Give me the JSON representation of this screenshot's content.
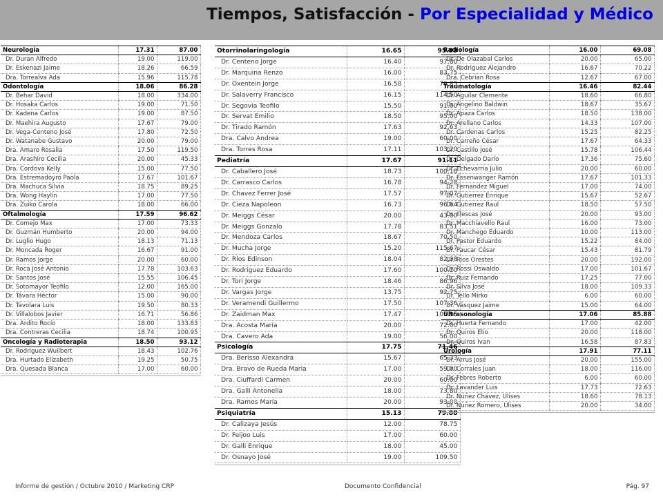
{
  "header": {
    "title_main": "Tiempos, Satisfacción - ",
    "title_highlight": "Por Especialidad y Médico"
  },
  "columns": [
    {
      "rows": [
        {
          "type": "specialty",
          "name": "Neurología",
          "time": "17.31",
          "score": "87.00"
        },
        {
          "type": "doctor",
          "name": "Dr. Duran Alfredo",
          "time": "19.00",
          "score": "119.00"
        },
        {
          "type": "doctor",
          "name": "Dr. Eskenazi Jaime",
          "time": "18.26",
          "score": "66.59"
        },
        {
          "type": "doctor",
          "name": "Dra. Torrealva Ada",
          "time": "15.96",
          "score": "115.78"
        },
        {
          "type": "specialty",
          "name": "Odontología",
          "time": "18.06",
          "score": "86.28"
        },
        {
          "type": "doctor",
          "name": "Dr. Behar David",
          "time": "18.00",
          "score": "334.00"
        },
        {
          "type": "doctor",
          "name": "Dr. Hosaka Carlos",
          "time": "19.00",
          "score": "71.50"
        },
        {
          "type": "doctor",
          "name": "Dr. Kadena Carlos",
          "time": "19.00",
          "score": "87.50"
        },
        {
          "type": "doctor",
          "name": "Dr. Maehira Augusto",
          "time": "17.67",
          "score": "79.00"
        },
        {
          "type": "doctor",
          "name": "Dr. Vega-Centeno José",
          "time": "17.80",
          "score": "72.50"
        },
        {
          "type": "doctor",
          "name": "Dr. Watanabe Gustavo",
          "time": "20.00",
          "score": "79.00"
        },
        {
          "type": "doctor",
          "name": "Dra. Amaro Rosalia",
          "time": "17.50",
          "score": "119.50"
        },
        {
          "type": "doctor",
          "name": "Dra. Arashiro Cecilia",
          "time": "20.00",
          "score": "45.33"
        },
        {
          "type": "doctor",
          "name": "Dra. Cordova Kelly",
          "time": "15.00",
          "score": "77.50"
        },
        {
          "type": "doctor",
          "name": "Dra. Estremadoyro Paola",
          "time": "17.67",
          "score": "101.67"
        },
        {
          "type": "doctor",
          "name": "Dra. Machuca Silvia",
          "time": "18.75",
          "score": "89.25"
        },
        {
          "type": "doctor",
          "name": "Dra. Wong Haylin",
          "time": "17.00",
          "score": "77.50"
        },
        {
          "type": "doctor",
          "name": "Dra. Zuiko Carola",
          "time": "18.00",
          "score": "66.00"
        },
        {
          "type": "specialty",
          "name": "Oftalmología",
          "time": "17.59",
          "score": "96.62"
        },
        {
          "type": "doctor",
          "name": "Dr. Comejo Max",
          "time": "17.00",
          "score": "73.33"
        },
        {
          "type": "doctor",
          "name": "Dr. Guzmán Humberto",
          "time": "20.00",
          "score": "94.00"
        },
        {
          "type": "doctor",
          "name": "Dr. Luglio Hugo",
          "time": "18.13",
          "score": "71.13"
        },
        {
          "type": "doctor",
          "name": "Dr. Moncada Roger",
          "time": "16.67",
          "score": "91.00"
        },
        {
          "type": "doctor",
          "name": "Dr. Ramos Jorge",
          "time": "20.00",
          "score": "60.00"
        },
        {
          "type": "doctor",
          "name": "Dr. Roca José Antonio",
          "time": "17.78",
          "score": "103.63"
        },
        {
          "type": "doctor",
          "name": "Dr. Santos José",
          "time": "15.55",
          "score": "106.45"
        },
        {
          "type": "doctor",
          "name": "Dr. Sotomayor Teofilo",
          "time": "12.00",
          "score": "165.00"
        },
        {
          "type": "doctor",
          "name": "Dr. Távara Héctor",
          "time": "15.00",
          "score": "90.00"
        },
        {
          "type": "doctor",
          "name": "Dr. Tavolara Luis",
          "time": "19.50",
          "score": "80.33"
        },
        {
          "type": "doctor",
          "name": "Dr. Villalobos Javier",
          "time": "16.71",
          "score": "56.86"
        },
        {
          "type": "doctor",
          "name": "Dra. Ardito Rocío",
          "time": "18.00",
          "score": "133.83"
        },
        {
          "type": "doctor",
          "name": "Dra. Contreras Cecilia",
          "time": "18.74",
          "score": "100.95"
        },
        {
          "type": "specialty",
          "name": "Oncología y Radioterapia",
          "time": "18.50",
          "score": "93.12"
        },
        {
          "type": "doctor",
          "name": "Dr. Rodriguez Wuilbert",
          "time": "18.43",
          "score": "102.76"
        },
        {
          "type": "doctor",
          "name": "Dra. Hurtado Elizabeth",
          "time": "19.25",
          "score": "50.75"
        },
        {
          "type": "doctor",
          "name": "Dra. Quesada Blanca",
          "time": "17.00",
          "score": "60.00"
        }
      ]
    },
    {
      "rows": [
        {
          "type": "specialty",
          "name": "Otorrinolaringología",
          "time": "16.65",
          "score": "95.93"
        },
        {
          "type": "doctor",
          "name": "Dr. Centeno Jorge",
          "time": "16.40",
          "score": "97.80"
        },
        {
          "type": "doctor",
          "name": "Dr. Marquina Renzo",
          "time": "16.00",
          "score": "83.75"
        },
        {
          "type": "doctor",
          "name": "Dr. Oxentein Jorge",
          "time": "16.58",
          "score": "76.85"
        },
        {
          "type": "doctor",
          "name": "Dr. Salaverry Francisco",
          "time": "16.15",
          "score": "114.50"
        },
        {
          "type": "doctor",
          "name": "Dr. Segovia Teofilo",
          "time": "15.50",
          "score": "91.00"
        },
        {
          "type": "doctor",
          "name": "Dr. Servat Emilio",
          "time": "18.50",
          "score": "95.00"
        },
        {
          "type": "doctor",
          "name": "Dr. Tirado Ramón",
          "time": "17.63",
          "score": "92.63"
        },
        {
          "type": "doctor",
          "name": "Dra. Calvo Andrea",
          "time": "19.00",
          "score": "60.00"
        },
        {
          "type": "doctor",
          "name": "Dra. Torres Rosa",
          "time": "17.11",
          "score": "103.20"
        },
        {
          "type": "specialty",
          "name": "Pediatría",
          "time": "17.67",
          "score": "91.11"
        },
        {
          "type": "doctor",
          "name": "Dr. Caballero José",
          "time": "18.73",
          "score": "100.18"
        },
        {
          "type": "doctor",
          "name": "Dr. Carrasco Carlos",
          "time": "16.78",
          "score": "94.28"
        },
        {
          "type": "doctor",
          "name": "Dr. Chavez Ferrer José",
          "time": "17.57",
          "score": "97.07"
        },
        {
          "type": "doctor",
          "name": "Dr. Cieza Napoleon",
          "time": "16.73",
          "score": "96.64"
        },
        {
          "type": "doctor",
          "name": "Dr. Meiggs César",
          "time": "20.00",
          "score": "43.00"
        },
        {
          "type": "doctor",
          "name": "Dr. Meiggs Gonzalo",
          "time": "17.78",
          "score": "83.51"
        },
        {
          "type": "doctor",
          "name": "Dr. Mendoza Carlos",
          "time": "18.67",
          "score": "70.50"
        },
        {
          "type": "doctor",
          "name": "Dr. Mucha Jorge",
          "time": "15.20",
          "score": "115.67"
        },
        {
          "type": "doctor",
          "name": "Dr. Rios Edinson",
          "time": "18.04",
          "score": "82.38"
        },
        {
          "type": "doctor",
          "name": "Dr. Rodriguez Eduardo",
          "time": "17.60",
          "score": "100.20"
        },
        {
          "type": "doctor",
          "name": "Dr. Tori Jorge",
          "time": "18.46",
          "score": "86.96"
        },
        {
          "type": "doctor",
          "name": "Dr. Vargas Jorge",
          "time": "13.75",
          "score": "92.75"
        },
        {
          "type": "doctor",
          "name": "Dr. Veramendi Guillermo",
          "time": "17.50",
          "score": "107.36"
        },
        {
          "type": "doctor",
          "name": "Dr. Zaidman Max",
          "time": "17.47",
          "score": "105.95"
        },
        {
          "type": "doctor",
          "name": "Dra. Acosta María",
          "time": "20.00",
          "score": "72.00"
        },
        {
          "type": "doctor",
          "name": "Dra. Cavero Ada",
          "time": "19.00",
          "score": "56.00"
        },
        {
          "type": "specialty",
          "name": "Psicología",
          "time": "17.75",
          "score": "71.46"
        },
        {
          "type": "doctor",
          "name": "Dra. Berisso Alexandra",
          "time": "15.67",
          "score": "65.33"
        },
        {
          "type": "doctor",
          "name": "Dra. Bravo de Rueda María",
          "time": "17.00",
          "score": "59.00"
        },
        {
          "type": "doctor",
          "name": "Dra. Ciuffardi Carmen",
          "time": "20.00",
          "score": "60.00"
        },
        {
          "type": "doctor",
          "name": "Dra. Galli Antonella",
          "time": "18.00",
          "score": "73.80"
        },
        {
          "type": "doctor",
          "name": "Dra. Ramos María",
          "time": "20.00",
          "score": "93.00"
        },
        {
          "type": "specialty",
          "name": "Psiquiatría",
          "time": "15.13",
          "score": "79.88"
        },
        {
          "type": "doctor",
          "name": "Dr. Calizaya Jesús",
          "time": "12.00",
          "score": "78.75"
        },
        {
          "type": "doctor",
          "name": "Dr. Feijoo Luis",
          "time": "17.00",
          "score": "60.00"
        },
        {
          "type": "doctor",
          "name": "Dr. Galli Enrique",
          "time": "18.00",
          "score": "45.00"
        },
        {
          "type": "doctor",
          "name": "Dr. Osnayo José",
          "time": "19.00",
          "score": "109.50"
        }
      ]
    },
    {
      "rows": [
        {
          "type": "specialty",
          "name": "Radiología",
          "time": "16.00",
          "score": "69.08"
        },
        {
          "type": "doctor",
          "name": "Dr. De Olazabal Carlos",
          "time": "20.00",
          "score": "65.00"
        },
        {
          "type": "doctor",
          "name": "Dr. Rodriguez Alejandro",
          "time": "16.67",
          "score": "70.22"
        },
        {
          "type": "doctor",
          "name": "Dra. Cebrian Rosa",
          "time": "12.67",
          "score": "67.00"
        },
        {
          "type": "specialty",
          "name": "Traumatología",
          "time": "16.46",
          "score": "82.44"
        },
        {
          "type": "doctor",
          "name": "Dr. Aguilar Clemente",
          "time": "18.60",
          "score": "66.80"
        },
        {
          "type": "doctor",
          "name": "Dr. Angelino Baldwin",
          "time": "18.67",
          "score": "35.67"
        },
        {
          "type": "doctor",
          "name": "Dr. Apaza Carlos",
          "time": "18.50",
          "score": "138.00"
        },
        {
          "type": "doctor",
          "name": "Dr. Arellano Carlos",
          "time": "14.33",
          "score": "107.00"
        },
        {
          "type": "doctor",
          "name": "Dr. Cardenas Carlos",
          "time": "15.25",
          "score": "82.25"
        },
        {
          "type": "doctor",
          "name": "Dr. Carreño César",
          "time": "17.67",
          "score": "64.33"
        },
        {
          "type": "doctor",
          "name": "Dr. Castillo José",
          "time": "15.78",
          "score": "106.44"
        },
        {
          "type": "doctor",
          "name": "Dr. Delgado Darío",
          "time": "17.36",
          "score": "75.60"
        },
        {
          "type": "doctor",
          "name": "Dr. Echevarria Julio",
          "time": "20.00",
          "score": "60.00"
        },
        {
          "type": "doctor",
          "name": "Dr. Essenwanger Ramón",
          "time": "17.67",
          "score": "101.33"
        },
        {
          "type": "doctor",
          "name": "Dr. Fernandez Miguel",
          "time": "17.00",
          "score": "74.00"
        },
        {
          "type": "doctor",
          "name": "Dr. Gutierrez Enrique",
          "time": "15.67",
          "score": "52.67"
        },
        {
          "type": "doctor",
          "name": "Dr. Gutierrez Raul",
          "time": "18.50",
          "score": "57.50"
        },
        {
          "type": "doctor",
          "name": "Dr. Illescas José",
          "time": "20.00",
          "score": "93.00"
        },
        {
          "type": "doctor",
          "name": "Dr. Macchiavello Raul",
          "time": "16.00",
          "score": "73.00"
        },
        {
          "type": "doctor",
          "name": "Dr. Manchego Eduardo",
          "time": "10.00",
          "score": "113.00"
        },
        {
          "type": "doctor",
          "name": "Dr. Pastor Eduardo",
          "time": "15.22",
          "score": "84.00"
        },
        {
          "type": "doctor",
          "name": "Dr. Paucar César",
          "time": "15.43",
          "score": "81.79"
        },
        {
          "type": "doctor",
          "name": "Dr. Rios Orestes",
          "time": "20.00",
          "score": "192.00"
        },
        {
          "type": "doctor",
          "name": "Dr. Rossi Oswaldo",
          "time": "17.00",
          "score": "101.67"
        },
        {
          "type": "doctor",
          "name": "Dr. Ruiz Fernando",
          "time": "17.25",
          "score": "77.00"
        },
        {
          "type": "doctor",
          "name": "Dr. Silva José",
          "time": "18.00",
          "score": "109.33"
        },
        {
          "type": "doctor",
          "name": "Dr. Tello Mirko",
          "time": "6.00",
          "score": "60.00"
        },
        {
          "type": "doctor",
          "name": "Dr. Vásquez Jaime",
          "time": "15.00",
          "score": "64.00"
        },
        {
          "type": "specialty",
          "name": "Ultrasonología",
          "time": "17.06",
          "score": "85.88"
        },
        {
          "type": "doctor",
          "name": "Dr. Huerta Fernando",
          "time": "17.00",
          "score": "42.00"
        },
        {
          "type": "doctor",
          "name": "Dr. Quiros Elio",
          "time": "20.00",
          "score": "118.00"
        },
        {
          "type": "doctor",
          "name": "Dr. Quiros Ivan",
          "time": "16.58",
          "score": "87.83"
        },
        {
          "type": "specialty",
          "name": "Urología",
          "time": "17.91",
          "score": "77.11"
        },
        {
          "type": "doctor",
          "name": "Dr. Arrus José",
          "time": "20.00",
          "score": "155.00"
        },
        {
          "type": "doctor",
          "name": "Dr. Corrales Juan",
          "time": "18.00",
          "score": "116.00"
        },
        {
          "type": "doctor",
          "name": "Dr. Febres Roberto",
          "time": "6.00",
          "score": "60.00"
        },
        {
          "type": "doctor",
          "name": "Dr. Lavander Luis",
          "time": "17.73",
          "score": "72.63"
        },
        {
          "type": "doctor",
          "name": "Dr. Núñez Chávez, Ulises",
          "time": "18.60",
          "score": "78.13"
        },
        {
          "type": "doctor",
          "name": "Dr. Núñez Romero, Ulises",
          "time": "20.00",
          "score": "34.00"
        }
      ]
    }
  ],
  "footer": {
    "left": "Informe de gestión / Octubre 2010 / Marketing CRP",
    "center": "Documento Confidencial",
    "right": "Pág. 97"
  }
}
